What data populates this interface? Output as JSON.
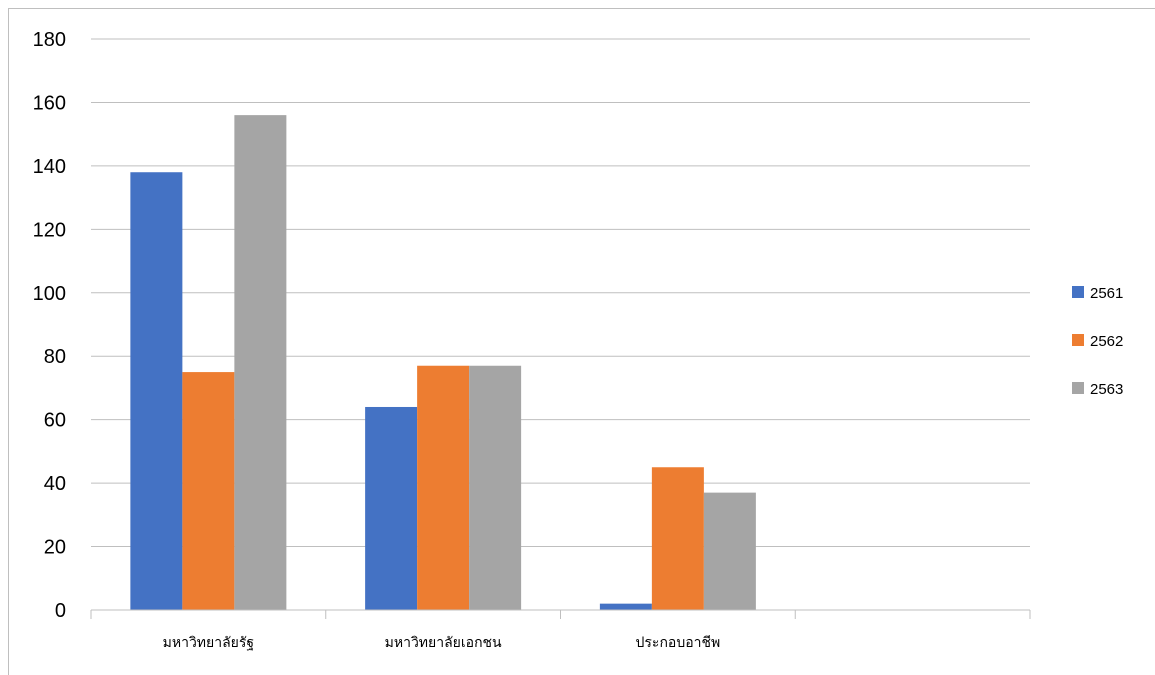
{
  "chart_data": {
    "type": "bar",
    "categories": [
      "มหาวิทยาลัยรัฐ",
      "มหาวิทยาลัยเอกชน",
      "ประกอบอาชีพ",
      ""
    ],
    "series": [
      {
        "name": "2561",
        "color": "#4472C4",
        "values": [
          138,
          64,
          2,
          null
        ]
      },
      {
        "name": "2562",
        "color": "#ED7D31",
        "values": [
          75,
          77,
          45,
          null
        ]
      },
      {
        "name": "2563",
        "color": "#A5A5A5",
        "values": [
          156,
          77,
          37,
          null
        ]
      }
    ],
    "ylim": [
      0,
      180
    ],
    "yticks": [
      0,
      20,
      40,
      60,
      80,
      100,
      120,
      140,
      160,
      180
    ],
    "grid": true,
    "legend": "right",
    "title": "",
    "xlabel": "",
    "ylabel": ""
  }
}
